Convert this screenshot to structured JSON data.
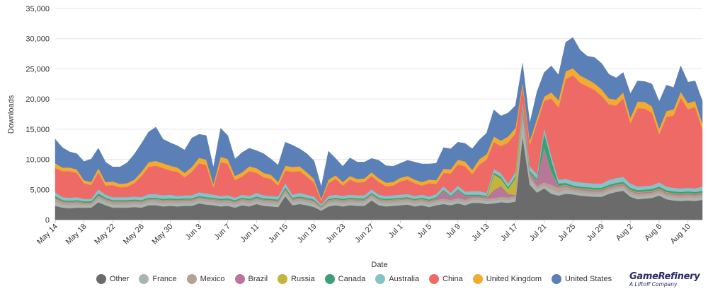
{
  "chart_data": {
    "type": "area",
    "stacked": true,
    "xlabel": "Date",
    "ylabel": "Downloads",
    "ylim": [
      0,
      35000
    ],
    "y_ticks": [
      "0",
      "5,000",
      "10,000",
      "15,000",
      "20,000",
      "25,000",
      "30,000",
      "35,000"
    ],
    "grid": true,
    "legend_position": "bottom",
    "x_tick_labels": [
      "May 14",
      "May 18",
      "May 22",
      "May 26",
      "May 30",
      "Jun 3",
      "Jun 7",
      "Jun 11",
      "Jun 15",
      "Jun 19",
      "Jun 23",
      "Jun 27",
      "Jul 1",
      "Jul 5",
      "Jul 9",
      "Jul 13",
      "Jul 17",
      "Jul 21",
      "Jul 25",
      "Jul 29",
      "Aug 2",
      "Aug 6",
      "Aug 10"
    ],
    "x_tick_interval_days": 4,
    "start": "May 14",
    "x": [
      "May 14",
      "May 15",
      "May 16",
      "May 17",
      "May 18",
      "May 19",
      "May 20",
      "May 21",
      "May 22",
      "May 23",
      "May 24",
      "May 25",
      "May 26",
      "May 27",
      "May 28",
      "May 29",
      "May 30",
      "May 31",
      "Jun 1",
      "Jun 2",
      "Jun 3",
      "Jun 4",
      "Jun 5",
      "Jun 6",
      "Jun 7",
      "Jun 8",
      "Jun 9",
      "Jun 10",
      "Jun 11",
      "Jun 12",
      "Jun 13",
      "Jun 14",
      "Jun 15",
      "Jun 16",
      "Jun 17",
      "Jun 18",
      "Jun 19",
      "Jun 20",
      "Jun 21",
      "Jun 22",
      "Jun 23",
      "Jun 24",
      "Jun 25",
      "Jun 26",
      "Jun 27",
      "Jun 28",
      "Jun 29",
      "Jun 30",
      "Jul 1",
      "Jul 2",
      "Jul 3",
      "Jul 4",
      "Jul 5",
      "Jul 6",
      "Jul 7",
      "Jul 8",
      "Jul 9",
      "Jul 10",
      "Jul 11",
      "Jul 12",
      "Jul 13",
      "Jul 14",
      "Jul 15",
      "Jul 16",
      "Jul 17",
      "Jul 18",
      "Jul 19",
      "Jul 20",
      "Jul 21",
      "Jul 22",
      "Jul 23",
      "Jul 24",
      "Jul 25",
      "Jul 26",
      "Jul 27",
      "Jul 28",
      "Jul 29",
      "Jul 30",
      "Jul 31",
      "Aug 1",
      "Aug 2",
      "Aug 3",
      "Aug 4",
      "Aug 5",
      "Aug 6",
      "Aug 7",
      "Aug 8",
      "Aug 9",
      "Aug 10",
      "Aug 11",
      "Aug 12"
    ],
    "series": [
      {
        "name": "Other",
        "color": "#6b6b6b",
        "values": [
          2300,
          2000,
          1900,
          2000,
          2000,
          2000,
          2900,
          2400,
          2000,
          2000,
          2000,
          2100,
          2000,
          2400,
          2400,
          2200,
          2300,
          2200,
          2300,
          2300,
          2700,
          2500,
          2400,
          2200,
          2300,
          2000,
          2400,
          2200,
          2600,
          2300,
          2200,
          2100,
          3900,
          2400,
          2600,
          2400,
          2100,
          1500,
          2200,
          2400,
          2200,
          2400,
          2300,
          2300,
          3200,
          2400,
          2200,
          2300,
          2400,
          2500,
          2200,
          2400,
          2100,
          2400,
          2600,
          2400,
          2700,
          2400,
          2800,
          2800,
          2600,
          2700,
          2900,
          2800,
          3000,
          13800,
          5800,
          4500,
          5200,
          4300,
          4000,
          4300,
          4200,
          4000,
          3900,
          3800,
          3800,
          4300,
          4600,
          4800,
          3800,
          3400,
          3500,
          3600,
          4000,
          3400,
          3200,
          3100,
          3200,
          3100,
          3300
        ]
      },
      {
        "name": "France",
        "color": "#a9b5b0",
        "values": [
          700,
          500,
          500,
          500,
          400,
          400,
          600,
          500,
          500,
          500,
          500,
          500,
          500,
          500,
          500,
          500,
          500,
          500,
          500,
          500,
          500,
          500,
          500,
          500,
          500,
          500,
          500,
          500,
          500,
          500,
          500,
          500,
          500,
          500,
          500,
          500,
          500,
          300,
          500,
          500,
          500,
          500,
          500,
          500,
          500,
          500,
          500,
          500,
          500,
          500,
          500,
          500,
          500,
          500,
          500,
          500,
          500,
          500,
          500,
          500,
          500,
          500,
          500,
          500,
          500,
          3500,
          1000,
          600,
          500,
          800,
          500,
          700,
          500,
          500,
          500,
          500,
          500,
          500,
          500,
          500,
          500,
          500,
          500,
          500,
          500,
          500,
          500,
          500,
          500,
          500,
          500
        ]
      },
      {
        "name": "Mexico",
        "color": "#b6a194",
        "values": [
          500,
          400,
          400,
          400,
          300,
          300,
          400,
          400,
          400,
          400,
          400,
          400,
          400,
          400,
          400,
          400,
          400,
          400,
          400,
          400,
          400,
          400,
          400,
          400,
          400,
          400,
          400,
          400,
          400,
          400,
          400,
          400,
          500,
          400,
          400,
          400,
          400,
          200,
          400,
          400,
          400,
          400,
          400,
          400,
          400,
          400,
          400,
          400,
          400,
          400,
          400,
          400,
          400,
          400,
          400,
          400,
          400,
          400,
          400,
          400,
          400,
          400,
          400,
          400,
          400,
          700,
          600,
          500,
          500,
          700,
          800,
          500,
          400,
          400,
          400,
          400,
          400,
          400,
          400,
          400,
          400,
          400,
          400,
          400,
          400,
          400,
          400,
          400,
          400,
          400,
          400
        ]
      },
      {
        "name": "Brazil",
        "color": "#b8779a",
        "values": [
          100,
          100,
          100,
          100,
          100,
          100,
          100,
          100,
          100,
          100,
          100,
          100,
          100,
          100,
          100,
          100,
          100,
          100,
          100,
          100,
          100,
          100,
          100,
          100,
          100,
          100,
          100,
          100,
          100,
          100,
          100,
          100,
          100,
          100,
          100,
          100,
          100,
          100,
          100,
          100,
          100,
          100,
          100,
          100,
          100,
          100,
          100,
          100,
          100,
          100,
          100,
          100,
          100,
          200,
          1200,
          400,
          1200,
          600,
          200,
          200,
          200,
          1300,
          1800,
          600,
          200,
          500,
          300,
          800,
          5500,
          2000,
          200,
          200,
          200,
          200,
          200,
          200,
          200,
          200,
          200,
          200,
          200,
          200,
          200,
          200,
          200,
          200,
          200,
          200,
          200,
          200,
          200
        ]
      },
      {
        "name": "Russia",
        "color": "#c2b53c",
        "values": [
          50,
          50,
          50,
          50,
          50,
          50,
          50,
          50,
          50,
          50,
          50,
          50,
          50,
          50,
          50,
          50,
          50,
          50,
          50,
          50,
          50,
          50,
          50,
          50,
          50,
          50,
          50,
          50,
          50,
          50,
          50,
          50,
          50,
          50,
          50,
          50,
          50,
          50,
          50,
          50,
          50,
          50,
          50,
          50,
          50,
          50,
          50,
          50,
          50,
          50,
          50,
          50,
          50,
          50,
          50,
          50,
          50,
          50,
          50,
          50,
          50,
          2600,
          1200,
          800,
          2800,
          200,
          100,
          100,
          200,
          100,
          100,
          100,
          100,
          100,
          100,
          100,
          100,
          100,
          100,
          100,
          100,
          100,
          100,
          100,
          100,
          100,
          100,
          100,
          100,
          100,
          100
        ]
      },
      {
        "name": "Canada",
        "color": "#3e9e78",
        "values": [
          300,
          200,
          200,
          200,
          200,
          200,
          300,
          200,
          200,
          200,
          200,
          200,
          200,
          200,
          200,
          200,
          200,
          200,
          200,
          200,
          200,
          200,
          200,
          200,
          200,
          200,
          200,
          200,
          200,
          200,
          200,
          200,
          300,
          200,
          200,
          200,
          200,
          100,
          200,
          200,
          200,
          200,
          200,
          200,
          200,
          200,
          200,
          200,
          200,
          200,
          200,
          200,
          200,
          200,
          200,
          200,
          200,
          200,
          200,
          200,
          200,
          300,
          300,
          300,
          300,
          300,
          300,
          300,
          2500,
          2000,
          400,
          300,
          300,
          300,
          300,
          300,
          300,
          300,
          300,
          300,
          300,
          300,
          300,
          300,
          300,
          300,
          300,
          300,
          300,
          300,
          300
        ]
      },
      {
        "name": "Australia",
        "color": "#86c2c8",
        "values": [
          600,
          500,
          500,
          500,
          400,
          400,
          700,
          500,
          500,
          500,
          500,
          500,
          500,
          600,
          600,
          600,
          600,
          500,
          500,
          500,
          600,
          600,
          500,
          500,
          500,
          400,
          500,
          500,
          600,
          500,
          500,
          500,
          700,
          500,
          600,
          500,
          500,
          300,
          500,
          500,
          500,
          500,
          500,
          500,
          600,
          500,
          500,
          500,
          500,
          500,
          500,
          500,
          500,
          500,
          600,
          500,
          600,
          500,
          600,
          600,
          500,
          600,
          600,
          600,
          700,
          700,
          800,
          700,
          800,
          700,
          600,
          700,
          700,
          700,
          700,
          700,
          700,
          800,
          800,
          800,
          700,
          600,
          600,
          600,
          700,
          600,
          600,
          600,
          600,
          600,
          700
        ]
      },
      {
        "name": "China",
        "color": "#ee6a66",
        "values": [
          4000,
          4300,
          4400,
          4000,
          2600,
          2300,
          2800,
          1500,
          2000,
          1600,
          1700,
          2200,
          3500,
          4500,
          4700,
          4500,
          4000,
          4000,
          3000,
          3900,
          4800,
          4700,
          1200,
          5600,
          5200,
          2900,
          3000,
          4100,
          3300,
          3000,
          2800,
          1800,
          2100,
          3800,
          3600,
          3000,
          2300,
          600,
          2100,
          2600,
          1700,
          2500,
          2100,
          2200,
          2200,
          2100,
          1600,
          1600,
          2200,
          2400,
          2100,
          1500,
          2200,
          1700,
          2200,
          3200,
          3500,
          4200,
          2800,
          4400,
          5500,
          4500,
          4500,
          6800,
          6400,
          2500,
          3500,
          8500,
          4500,
          9500,
          12000,
          16500,
          17500,
          16500,
          16000,
          15500,
          14500,
          12500,
          12000,
          13000,
          10000,
          13000,
          12800,
          12000,
          8000,
          11500,
          12000,
          15000,
          13000,
          13500,
          9500
        ]
      },
      {
        "name": "United Kingdom",
        "color": "#f2aa33",
        "values": [
          800,
          600,
          600,
          600,
          500,
          500,
          700,
          600,
          600,
          600,
          600,
          600,
          700,
          800,
          800,
          800,
          800,
          700,
          700,
          800,
          900,
          900,
          600,
          900,
          800,
          700,
          700,
          800,
          800,
          700,
          700,
          600,
          800,
          800,
          800,
          700,
          600,
          300,
          600,
          600,
          600,
          600,
          600,
          600,
          600,
          600,
          600,
          600,
          600,
          600,
          600,
          600,
          600,
          600,
          700,
          700,
          800,
          800,
          700,
          900,
          900,
          900,
          900,
          1000,
          900,
          600,
          700,
          800,
          700,
          1000,
          1200,
          1300,
          1200,
          1200,
          1200,
          1100,
          1100,
          1000,
          1000,
          1000,
          900,
          1100,
          1100,
          1100,
          900,
          1000,
          1000,
          1000,
          1000,
          1000,
          1000
        ]
      },
      {
        "name": "United States",
        "color": "#5b80b7",
        "values": [
          4000,
          3300,
          2600,
          2600,
          3100,
          3800,
          3300,
          3300,
          2400,
          2800,
          3400,
          4200,
          4700,
          5000,
          5600,
          4000,
          3800,
          3600,
          3800,
          4800,
          3900,
          4000,
          2700,
          4700,
          3900,
          2800,
          3300,
          3000,
          2900,
          3200,
          2600,
          2800,
          3900,
          3600,
          2900,
          3100,
          3000,
          2000,
          4700,
          2800,
          2600,
          3000,
          2800,
          2700,
          2300,
          3000,
          2800,
          2600,
          2400,
          2600,
          2900,
          3000,
          2600,
          2800,
          3500,
          3400,
          2900,
          3000,
          3500,
          3200,
          3500,
          4400,
          4100,
          3900,
          3700,
          3100,
          2900,
          4400,
          4000,
          4400,
          4200,
          4800,
          5100,
          4200,
          3800,
          4300,
          4300,
          4000,
          3600,
          3300,
          4000,
          3400,
          3400,
          3700,
          4500,
          4300,
          3600,
          4300,
          3500,
          3300,
          3700
        ]
      }
    ]
  },
  "brand": {
    "name": "GameRefinery",
    "tagline": "A Liftoff Company"
  }
}
